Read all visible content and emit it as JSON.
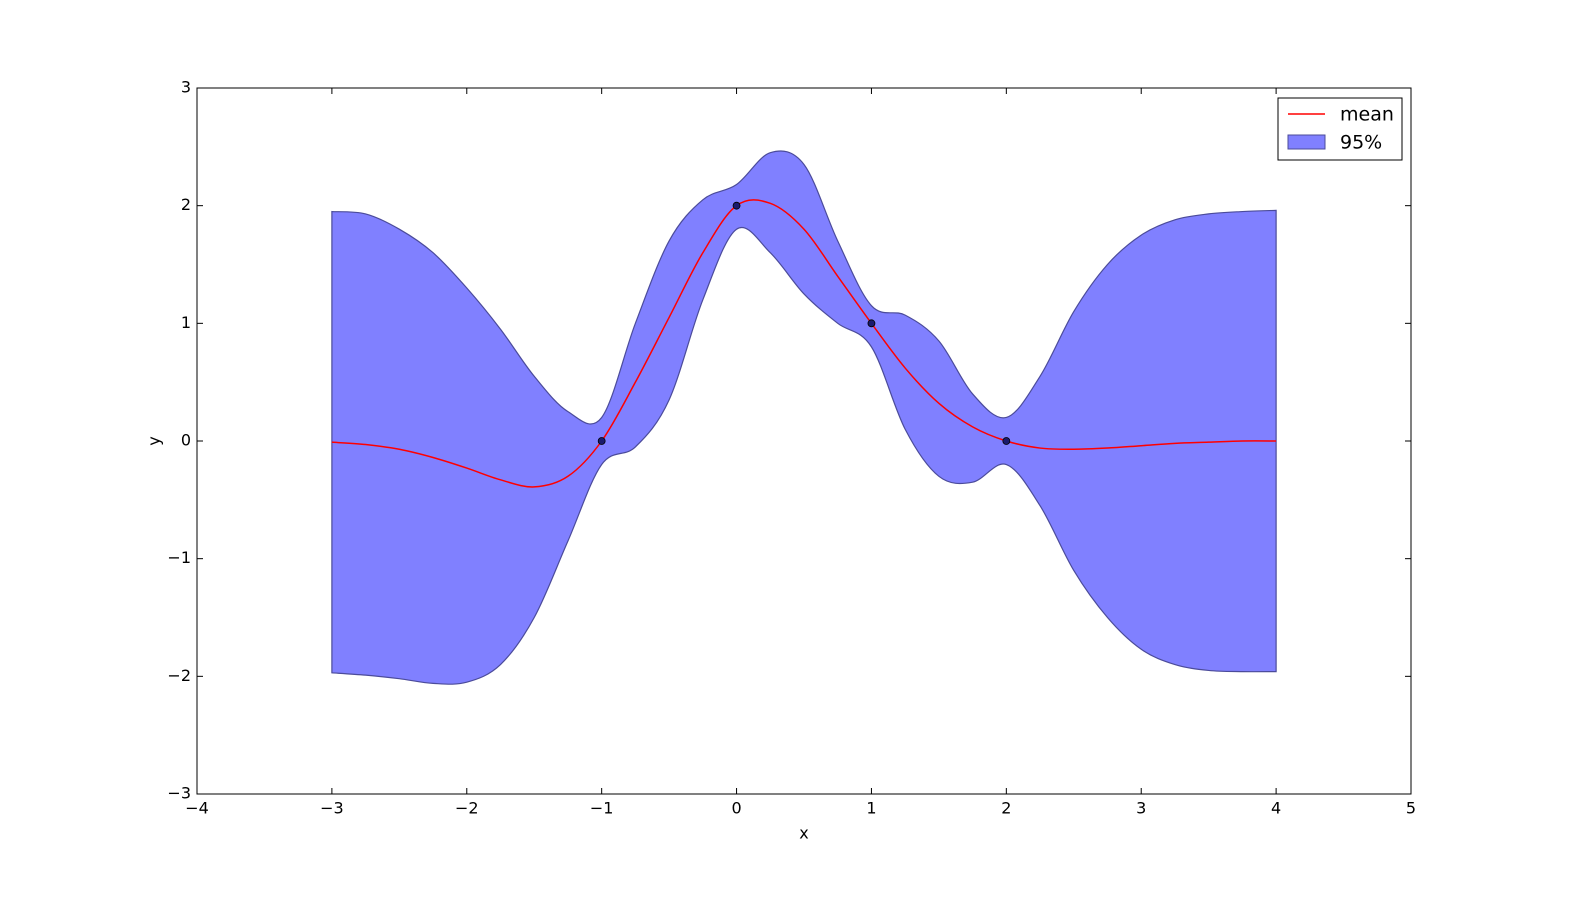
{
  "chart_data": {
    "type": "line",
    "xlabel": "x",
    "ylabel": "y",
    "x": [
      -3,
      -2.75,
      -2.5,
      -2.25,
      -2,
      -1.75,
      -1.5,
      -1.25,
      -1,
      -0.75,
      -0.5,
      -0.25,
      0,
      0.25,
      0.5,
      0.75,
      1,
      1.25,
      1.5,
      1.75,
      2,
      2.25,
      2.5,
      2.75,
      3,
      3.25,
      3.5,
      3.75,
      4
    ],
    "series": [
      {
        "name": "mean",
        "color": "#ff0000",
        "values": [
          -0.01,
          -0.03,
          -0.07,
          -0.14,
          -0.23,
          -0.33,
          -0.39,
          -0.3,
          0,
          0.5,
          1.05,
          1.6,
          2.0,
          2.02,
          1.8,
          1.4,
          1.0,
          0.62,
          0.32,
          0.12,
          0.0,
          -0.06,
          -0.07,
          -0.06,
          -0.04,
          -0.02,
          -0.01,
          0.0,
          0.0
        ]
      }
    ],
    "band": {
      "name": "95%",
      "color": "#8080ff",
      "edge_color": "#4b4b9a",
      "upper": [
        1.95,
        1.93,
        1.8,
        1.6,
        1.3,
        0.95,
        0.55,
        0.25,
        0.2,
        1.0,
        1.7,
        2.05,
        2.18,
        2.45,
        2.35,
        1.7,
        1.15,
        1.07,
        0.85,
        0.4,
        0.2,
        0.55,
        1.1,
        1.5,
        1.75,
        1.88,
        1.93,
        1.95,
        1.96
      ],
      "lower": [
        -1.97,
        -1.99,
        -2.02,
        -2.06,
        -2.05,
        -1.9,
        -1.5,
        -0.85,
        -0.2,
        -0.05,
        0.35,
        1.2,
        1.8,
        1.6,
        1.25,
        1.0,
        0.8,
        0.1,
        -0.3,
        -0.35,
        -0.2,
        -0.55,
        -1.1,
        -1.5,
        -1.77,
        -1.9,
        -1.95,
        -1.96,
        -1.96
      ]
    },
    "points": {
      "x": [
        -1,
        0,
        1,
        2
      ],
      "y": [
        0,
        2,
        1,
        0
      ],
      "color": "#1a1a6e"
    },
    "xlim": [
      -4,
      5
    ],
    "ylim": [
      -3,
      3
    ],
    "xticks": [
      {
        "value": -4,
        "label": "−4"
      },
      {
        "value": -3,
        "label": "−3"
      },
      {
        "value": -2,
        "label": "−2"
      },
      {
        "value": -1,
        "label": "−1"
      },
      0,
      1,
      2,
      3,
      4,
      5
    ],
    "yticks": [
      {
        "value": -3,
        "label": "−3"
      },
      {
        "value": -2,
        "label": "−2"
      },
      {
        "value": -1,
        "label": "−1"
      },
      0,
      1,
      2,
      3
    ],
    "legend": "upper right"
  }
}
